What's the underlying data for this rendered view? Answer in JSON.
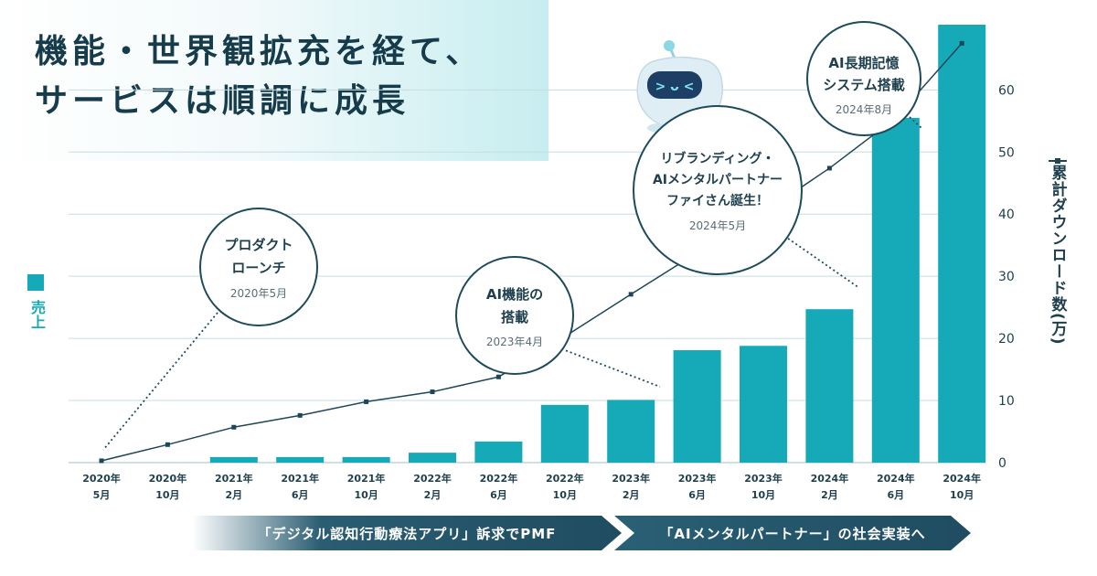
{
  "page": {
    "title_line1": "機能・世界観拡充を経て、",
    "title_line2": "サービスは順調に成長"
  },
  "legend": {
    "sales_label": "売上",
    "downloads_label": "累計ダウンロード数(万)"
  },
  "annotations": [
    {
      "line1": "プロダクト",
      "line2": "ローンチ",
      "date": "2020年5月"
    },
    {
      "line1": "AI機能の",
      "line2": "搭載",
      "date": "2023年4月"
    },
    {
      "line1": "リブランディング・",
      "line2": "AIメンタルパートナー",
      "line3": "ファイさん誕生！",
      "date": "2024年5月"
    },
    {
      "line1": "AI長期記憶",
      "line2": "システム搭載",
      "date": "2024年8月"
    }
  ],
  "banners": {
    "phase1": "「デジタル認知行動療法アプリ」訴求でPMF",
    "phase2": "「AIメンタルパートナー」の社会実装へ"
  },
  "chart_data": {
    "type": "bar",
    "categories": [
      [
        "2020年",
        "5月"
      ],
      [
        "2020年",
        "10月"
      ],
      [
        "2021年",
        "2月"
      ],
      [
        "2021年",
        "6月"
      ],
      [
        "2021年",
        "10月"
      ],
      [
        "2022年",
        "2月"
      ],
      [
        "2022年",
        "6月"
      ],
      [
        "2022年",
        "10月"
      ],
      [
        "2023年",
        "2月"
      ],
      [
        "2023年",
        "6月"
      ],
      [
        "2023年",
        "10月"
      ],
      [
        "2024年",
        "2月"
      ],
      [
        "2024年",
        "6月"
      ],
      [
        "2024年",
        "10月"
      ]
    ],
    "series": [
      {
        "name": "売上",
        "type": "bar",
        "values": [
          0,
          0,
          0.9,
          0.9,
          0.9,
          1.6,
          3.4,
          9.3,
          10.1,
          18.1,
          18.8,
          24.7,
          55.5,
          70.5
        ]
      },
      {
        "name": "累計ダウンロード数(万)",
        "type": "line",
        "axis": "right",
        "values": [
          0.3,
          2.9,
          5.7,
          7.6,
          9.8,
          11.4,
          13.8,
          20.3,
          27.1,
          33.8,
          40.2,
          47.4,
          55.5,
          67.5
        ]
      }
    ],
    "right_axis": {
      "ticks": [
        0,
        10,
        20,
        30,
        40,
        50,
        60
      ],
      "ylim": [
        0,
        70.5
      ]
    },
    "grid": true,
    "colors": {
      "bar": "#16aab8",
      "line": "#1d4758",
      "grid": "#c5dde2",
      "circle": "#1d4a5c"
    }
  }
}
